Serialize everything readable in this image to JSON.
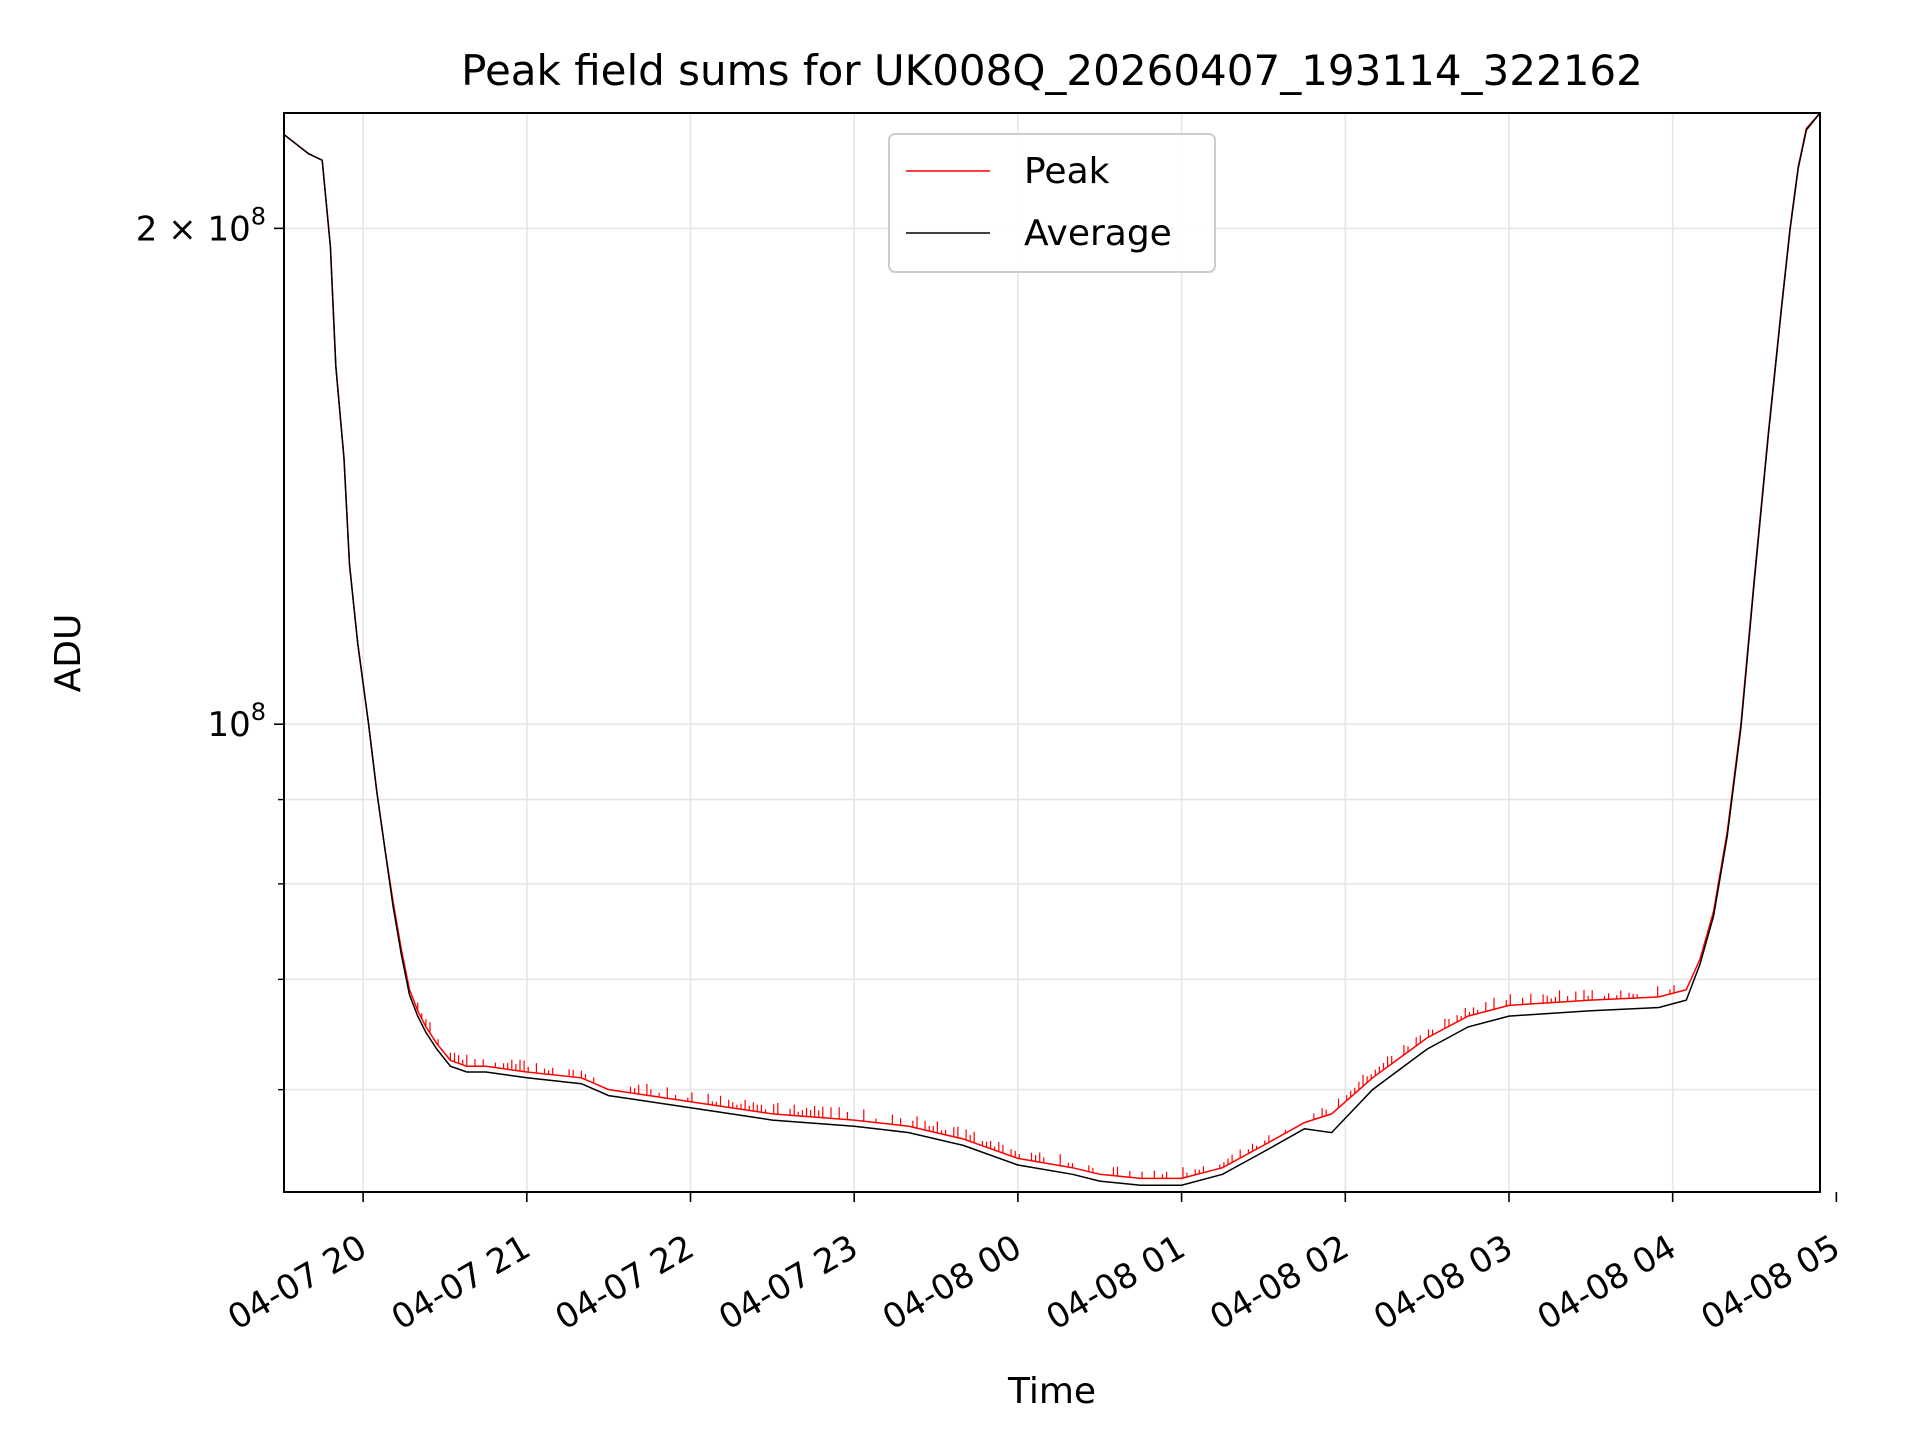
{
  "chart_data": {
    "type": "line",
    "title": "Peak field sums for UK008Q_20260407_193114_322162",
    "xlabel": "Time",
    "ylabel": "ADU",
    "y_scale": "log",
    "grid": true,
    "legend_position": "upper center",
    "x_range": [
      "2026-04-07 19:31",
      "2026-04-08 04:54"
    ],
    "ylim": [
      52000000,
      235000000
    ],
    "x_ticks": [
      {
        "t": "2026-04-07 20:00",
        "label": "04-07 20"
      },
      {
        "t": "2026-04-07 21:00",
        "label": "04-07 21"
      },
      {
        "t": "2026-04-07 22:00",
        "label": "04-07 22"
      },
      {
        "t": "2026-04-07 23:00",
        "label": "04-07 23"
      },
      {
        "t": "2026-04-08 00:00",
        "label": "04-08 00"
      },
      {
        "t": "2026-04-08 01:00",
        "label": "04-08 01"
      },
      {
        "t": "2026-04-08 02:00",
        "label": "04-08 02"
      },
      {
        "t": "2026-04-08 03:00",
        "label": "04-08 03"
      },
      {
        "t": "2026-04-08 04:00",
        "label": "04-08 04"
      },
      {
        "t": "2026-04-08 05:00",
        "label": "04-08 05"
      }
    ],
    "y_major_ticks": [
      {
        "value": 100000000,
        "base": "10",
        "exp": "8",
        "coef": ""
      },
      {
        "value": 200000000,
        "base": "10",
        "exp": "8",
        "coef": "2 × "
      }
    ],
    "y_minor_ticks": [
      60000000,
      70000000,
      80000000,
      90000000
    ],
    "series": [
      {
        "name": "Peak",
        "color": "#ff0000",
        "x": [
          "2026-04-07 19:31",
          "2026-04-07 19:40",
          "2026-04-07 19:45",
          "2026-04-07 19:48",
          "2026-04-07 19:50",
          "2026-04-07 19:53",
          "2026-04-07 19:55",
          "2026-04-07 19:58",
          "2026-04-07 20:02",
          "2026-04-07 20:05",
          "2026-04-07 20:08",
          "2026-04-07 20:11",
          "2026-04-07 20:14",
          "2026-04-07 20:17",
          "2026-04-07 20:20",
          "2026-04-07 20:23",
          "2026-04-07 20:27",
          "2026-04-07 20:32",
          "2026-04-07 20:38",
          "2026-04-07 20:45",
          "2026-04-07 21:00",
          "2026-04-07 21:20",
          "2026-04-07 21:30",
          "2026-04-07 22:00",
          "2026-04-07 22:30",
          "2026-04-07 23:00",
          "2026-04-07 23:20",
          "2026-04-07 23:40",
          "2026-04-08 00:00",
          "2026-04-08 00:20",
          "2026-04-08 00:30",
          "2026-04-08 00:45",
          "2026-04-08 01:00",
          "2026-04-08 01:15",
          "2026-04-08 01:30",
          "2026-04-08 01:45",
          "2026-04-08 01:55",
          "2026-04-08 02:10",
          "2026-04-08 02:30",
          "2026-04-08 02:45",
          "2026-04-08 03:00",
          "2026-04-08 03:30",
          "2026-04-08 03:55",
          "2026-04-08 04:05",
          "2026-04-08 04:10",
          "2026-04-08 04:15",
          "2026-04-08 04:20",
          "2026-04-08 04:25",
          "2026-04-08 04:30",
          "2026-04-08 04:35",
          "2026-04-08 04:40",
          "2026-04-08 04:43",
          "2026-04-08 04:46",
          "2026-04-08 04:49",
          "2026-04-08 04:54"
        ],
        "y": [
          228000000,
          222000000,
          220000000,
          195000000,
          165000000,
          145000000,
          125000000,
          112000000,
          100000000,
          91000000,
          84000000,
          78000000,
          73000000,
          69000000,
          67000000,
          65500000,
          64000000,
          62500000,
          62000000,
          62000000,
          61500000,
          61000000,
          60000000,
          59000000,
          58000000,
          57500000,
          57000000,
          56000000,
          54500000,
          53800000,
          53300000,
          53000000,
          53000000,
          53800000,
          55500000,
          57300000,
          58000000,
          61000000,
          64500000,
          66500000,
          67500000,
          68000000,
          68300000,
          69000000,
          72000000,
          77000000,
          86000000,
          100000000,
          123000000,
          150000000,
          180000000,
          200000000,
          218000000,
          230000000,
          235000000
        ]
      },
      {
        "name": "Average",
        "color": "#000000",
        "x": [
          "2026-04-07 19:31",
          "2026-04-07 19:40",
          "2026-04-07 19:45",
          "2026-04-07 19:48",
          "2026-04-07 19:50",
          "2026-04-07 19:53",
          "2026-04-07 19:55",
          "2026-04-07 19:58",
          "2026-04-07 20:02",
          "2026-04-07 20:05",
          "2026-04-07 20:08",
          "2026-04-07 20:11",
          "2026-04-07 20:14",
          "2026-04-07 20:17",
          "2026-04-07 20:20",
          "2026-04-07 20:23",
          "2026-04-07 20:27",
          "2026-04-07 20:32",
          "2026-04-07 20:38",
          "2026-04-07 20:45",
          "2026-04-07 21:00",
          "2026-04-07 21:20",
          "2026-04-07 21:30",
          "2026-04-07 22:00",
          "2026-04-07 22:30",
          "2026-04-07 23:00",
          "2026-04-07 23:20",
          "2026-04-07 23:40",
          "2026-04-08 00:00",
          "2026-04-08 00:20",
          "2026-04-08 00:30",
          "2026-04-08 00:45",
          "2026-04-08 01:00",
          "2026-04-08 01:15",
          "2026-04-08 01:30",
          "2026-04-08 01:45",
          "2026-04-08 01:55",
          "2026-04-08 02:10",
          "2026-04-08 02:30",
          "2026-04-08 02:45",
          "2026-04-08 03:00",
          "2026-04-08 03:30",
          "2026-04-08 03:55",
          "2026-04-08 04:05",
          "2026-04-08 04:10",
          "2026-04-08 04:15",
          "2026-04-08 04:20",
          "2026-04-08 04:25",
          "2026-04-08 04:30",
          "2026-04-08 04:35",
          "2026-04-08 04:40",
          "2026-04-08 04:43",
          "2026-04-08 04:46",
          "2026-04-08 04:49",
          "2026-04-08 04:54"
        ],
        "y": [
          228000000,
          222000000,
          220000000,
          195000000,
          165000000,
          145000000,
          125000000,
          112000000,
          100000000,
          91000000,
          84000000,
          77500000,
          72500000,
          68500000,
          66500000,
          65000000,
          63500000,
          62000000,
          61500000,
          61500000,
          61000000,
          60500000,
          59500000,
          58500000,
          57500000,
          57000000,
          56500000,
          55500000,
          54000000,
          53300000,
          52800000,
          52500000,
          52500000,
          53300000,
          55000000,
          56800000,
          56500000,
          60000000,
          63500000,
          65500000,
          66500000,
          67000000,
          67300000,
          68000000,
          71500000,
          76500000,
          85500000,
          99500000,
          122500000,
          149500000,
          179500000,
          199500000,
          217500000,
          229500000,
          235000000
        ]
      }
    ],
    "peak_spike_windows": [
      {
        "start": "2026-04-07 20:20",
        "end": "2026-04-08 04:05",
        "amplitude": 0.012
      }
    ]
  }
}
